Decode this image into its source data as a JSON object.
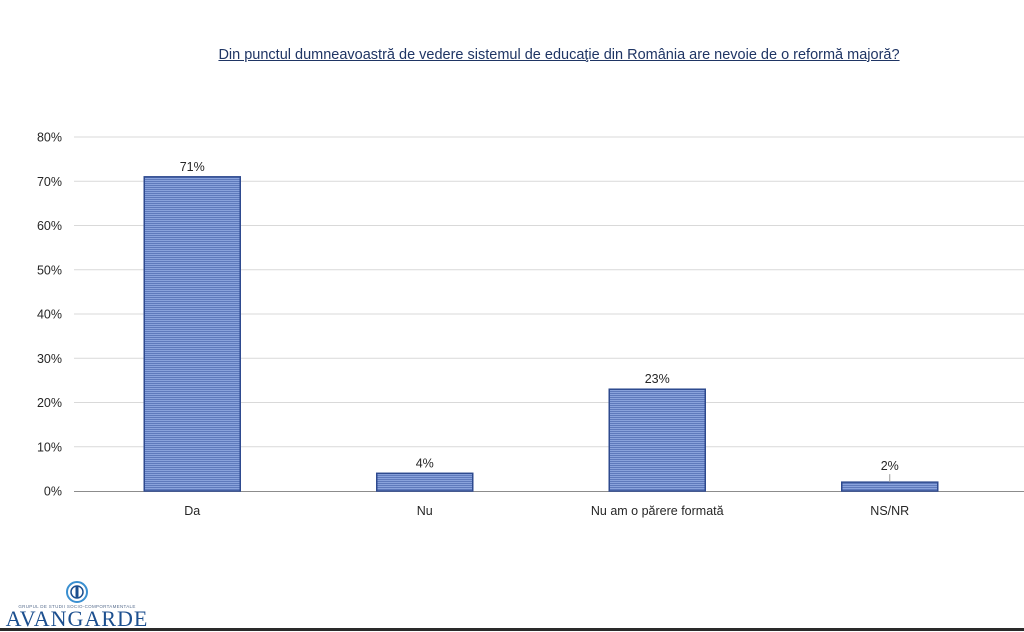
{
  "chart_data": {
    "type": "bar",
    "title": "Din punctul dumneavoastră de vedere sistemul de educaţie din România are nevoie de o reformă majoră?",
    "categories": [
      "Da",
      "Nu",
      "Nu am o părere formată",
      "NS/NR"
    ],
    "values": [
      71,
      4,
      23,
      2
    ],
    "data_labels": [
      "71%",
      "4%",
      "23%",
      "2%"
    ],
    "ylim": [
      0,
      80
    ],
    "yticks": [
      "0%",
      "10%",
      "20%",
      "30%",
      "40%",
      "50%",
      "60%",
      "70%",
      "80%"
    ],
    "grid": true,
    "colors": {
      "bar_fill": "#7f9ad6",
      "bar_stripe": "#5670b4",
      "bar_edge": "#2e4a8f",
      "grid": "#d9d9d9",
      "axis": "#8c8c8c",
      "text": "#262626"
    }
  },
  "branding": {
    "logo_text": "AVANGARDE",
    "logo_tagline": "GRUPUL DE STUDII SOCIO-COMPORTAMENTALE"
  }
}
